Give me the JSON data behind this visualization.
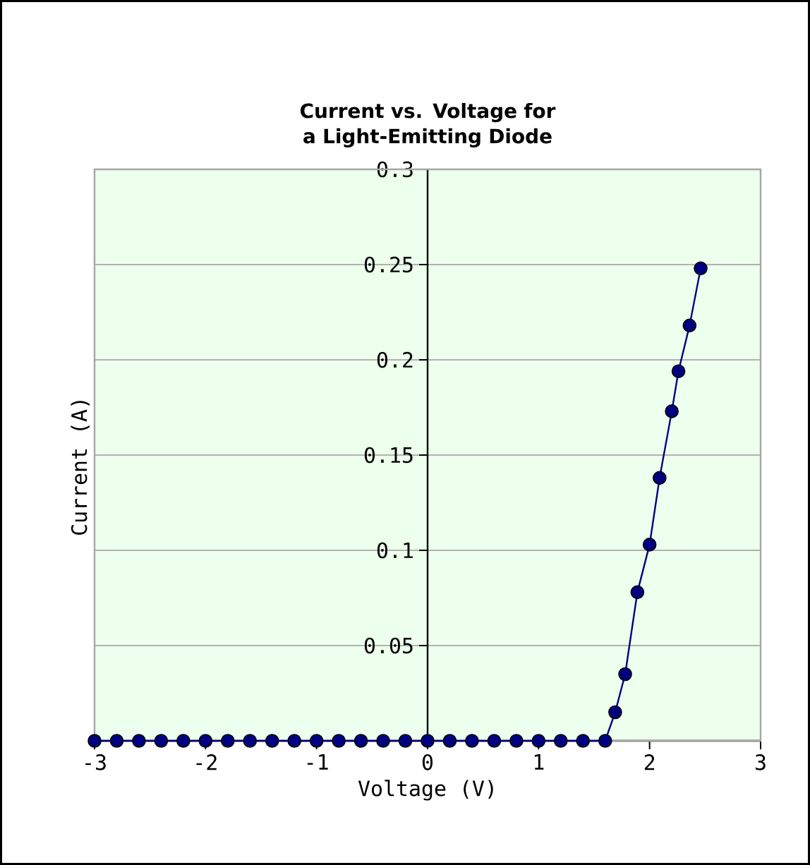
{
  "chart_data": {
    "type": "line",
    "title": "Current vs. Voltage for a Light-Emitting Diode",
    "xlabel": "Voltage (V)",
    "ylabel": "Current (A)",
    "x": [
      -3,
      -2.8,
      -2.6,
      -2.4,
      -2.2,
      -2,
      -1.8,
      -1.6,
      -1.4,
      -1.2,
      -1,
      -0.8,
      -0.6,
      -0.4,
      -0.2,
      0,
      0.2,
      0.4,
      0.6,
      0.8,
      1,
      1.2,
      1.4,
      1.6,
      1.69,
      1.78,
      1.89,
      2.0,
      2.09,
      2.2,
      2.26,
      2.36,
      2.46
    ],
    "series": [
      {
        "color": "#000080",
        "values": [
          0,
          0,
          0,
          0,
          0,
          0,
          0,
          0,
          0,
          0,
          0,
          0,
          0,
          0,
          0,
          0,
          0,
          0,
          0,
          0,
          0,
          0,
          0,
          0,
          0.015,
          0.035,
          0.078,
          0.103,
          0.138,
          0.173,
          0.194,
          0.218,
          0.248
        ]
      }
    ],
    "xlim": [
      -3,
      3
    ],
    "ylim": [
      0,
      0.3
    ],
    "xticks": [
      -3,
      -2,
      -1,
      0,
      1,
      2,
      3
    ],
    "yticks": [
      0.05,
      0.1,
      0.15,
      0.2,
      0.25,
      0.3
    ],
    "grid": "y",
    "legend": false,
    "marker": "circle",
    "line_style": "solid"
  }
}
